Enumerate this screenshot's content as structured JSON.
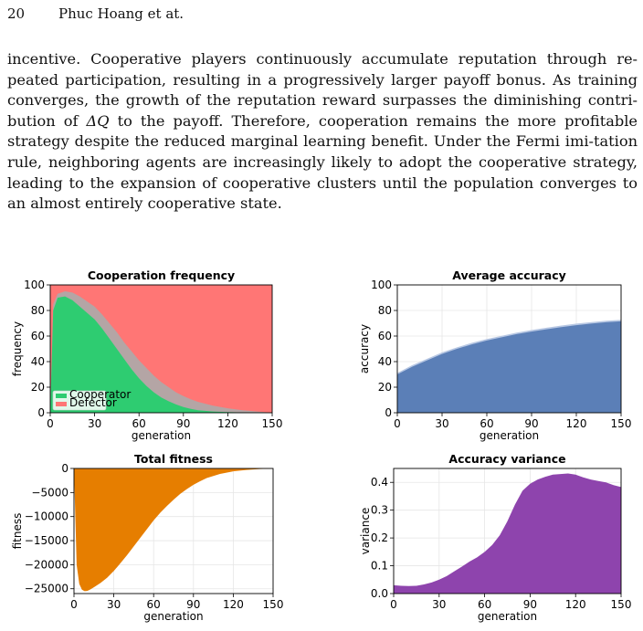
{
  "page": {
    "number": "20",
    "running_head": "Phuc Hoang et at."
  },
  "paragraph": {
    "before_math": "incentive. Cooperative players continuously accumulate reputation through re-peated participation, resulting in a progressively larger payoff bonus. As training converges, the growth of the reputation reward surpasses the diminishing contri-bution of ",
    "math": "ΔQ",
    "after_math": " to the payoff. Therefore, cooperation remains the more profitable strategy despite the reduced marginal learning benefit. Under the Fermi imi-tation rule, neighboring agents are increasingly likely to adopt the cooperative strategy, leading to the expansion of cooperative clusters until the population converges to an almost entirely cooperative state."
  },
  "colors": {
    "cooperator": "#2ecc71",
    "defector": "#ff7675",
    "band": "#b0a8a8",
    "accuracy": "#5b7fb7",
    "fitness": "#e67e00",
    "variance": "#8e44ad"
  },
  "chart_data": [
    {
      "type": "area",
      "title": "Cooperation frequency",
      "xlabel": "generation",
      "ylabel": "frequency",
      "xlim": [
        0,
        150
      ],
      "ylim": [
        0,
        100
      ],
      "xticks": [
        "0",
        "30",
        "60",
        "90",
        "120",
        "150"
      ],
      "yticks": [
        "0",
        "20",
        "40",
        "60",
        "80",
        "100"
      ],
      "legend": {
        "placement": "lower-left",
        "entries": [
          "Cooperator",
          "Defector"
        ]
      },
      "x": [
        0,
        2,
        5,
        10,
        15,
        20,
        25,
        30,
        35,
        40,
        45,
        50,
        55,
        60,
        65,
        70,
        75,
        80,
        85,
        90,
        95,
        100,
        110,
        120,
        130,
        140,
        150
      ],
      "series": [
        {
          "name": "Cooperator",
          "values": [
            0,
            80,
            90,
            91,
            88,
            83,
            78,
            73,
            66,
            58,
            50,
            42,
            34,
            27,
            21,
            16,
            12,
            9,
            6.5,
            4.5,
            3,
            2,
            1,
            0.5,
            0.3,
            0.1,
            0
          ]
        },
        {
          "name": "Defector",
          "values": [
            100,
            20,
            10,
            9,
            12,
            17,
            22,
            27,
            34,
            42,
            50,
            58,
            66,
            73,
            79,
            84,
            88,
            91,
            93.5,
            95.5,
            97,
            98,
            99,
            99.5,
            99.7,
            99.9,
            100
          ]
        }
      ],
      "band_upper": [
        0,
        85,
        93,
        95,
        94,
        91,
        87,
        83,
        77,
        70,
        63,
        55,
        48,
        41,
        35,
        29,
        24,
        20,
        16,
        13,
        10.5,
        8.5,
        5.5,
        3.5,
        2,
        1,
        0
      ]
    },
    {
      "type": "area",
      "title": "Average accuracy",
      "xlabel": "generation",
      "ylabel": "accuracy",
      "xlim": [
        0,
        150
      ],
      "ylim": [
        0,
        100
      ],
      "xticks": [
        "0",
        "30",
        "60",
        "90",
        "120",
        "150"
      ],
      "yticks": [
        "0",
        "20",
        "40",
        "60",
        "80",
        "100"
      ],
      "x": [
        0,
        10,
        20,
        30,
        40,
        50,
        60,
        70,
        80,
        90,
        100,
        110,
        120,
        130,
        140,
        150
      ],
      "series": [
        {
          "name": "",
          "values": [
            30,
            36,
            41,
            46,
            50,
            53.5,
            56.5,
            59,
            61.5,
            63.5,
            65.3,
            67,
            68.5,
            69.7,
            70.8,
            71.5
          ]
        }
      ]
    },
    {
      "type": "area",
      "title": "Total fitness",
      "xlabel": "generation",
      "ylabel": "fitness",
      "xlim": [
        0,
        150
      ],
      "ylim": [
        -26000,
        0
      ],
      "xticks": [
        "0",
        "30",
        "60",
        "90",
        "120",
        "150"
      ],
      "yticks": [
        "0",
        "−5000",
        "−10000",
        "−15000",
        "−20000",
        "−25000"
      ],
      "x": [
        0,
        2,
        4,
        6,
        8,
        10,
        12,
        15,
        20,
        25,
        30,
        35,
        40,
        45,
        50,
        55,
        60,
        65,
        70,
        75,
        80,
        85,
        90,
        95,
        100,
        110,
        120,
        130,
        140,
        150
      ],
      "series": [
        {
          "name": "",
          "values": [
            0,
            -20000,
            -24000,
            -25200,
            -25500,
            -25450,
            -25200,
            -24700,
            -23800,
            -22700,
            -21300,
            -19700,
            -18000,
            -16200,
            -14400,
            -12600,
            -10800,
            -9200,
            -7800,
            -6500,
            -5300,
            -4300,
            -3400,
            -2650,
            -2000,
            -1150,
            -600,
            -300,
            -120,
            -30
          ]
        }
      ]
    },
    {
      "type": "area",
      "title": "Accuracy variance",
      "xlabel": "generation",
      "ylabel": "variance",
      "xlim": [
        0,
        150
      ],
      "ylim": [
        0,
        0.45
      ],
      "xticks": [
        "0",
        "30",
        "60",
        "90",
        "120",
        "150"
      ],
      "yticks": [
        "0.0",
        "0.1",
        "0.2",
        "0.3",
        "0.4"
      ],
      "x": [
        0,
        5,
        10,
        15,
        20,
        25,
        30,
        35,
        40,
        45,
        50,
        55,
        60,
        65,
        70,
        75,
        80,
        85,
        90,
        95,
        100,
        105,
        110,
        115,
        120,
        125,
        130,
        135,
        140,
        145,
        150
      ],
      "series": [
        {
          "name": "",
          "values": [
            0.03,
            0.028,
            0.027,
            0.028,
            0.033,
            0.04,
            0.05,
            0.063,
            0.08,
            0.097,
            0.115,
            0.13,
            0.15,
            0.175,
            0.21,
            0.26,
            0.32,
            0.37,
            0.395,
            0.41,
            0.42,
            0.428,
            0.43,
            0.432,
            0.428,
            0.418,
            0.41,
            0.405,
            0.4,
            0.39,
            0.383
          ]
        }
      ]
    }
  ]
}
